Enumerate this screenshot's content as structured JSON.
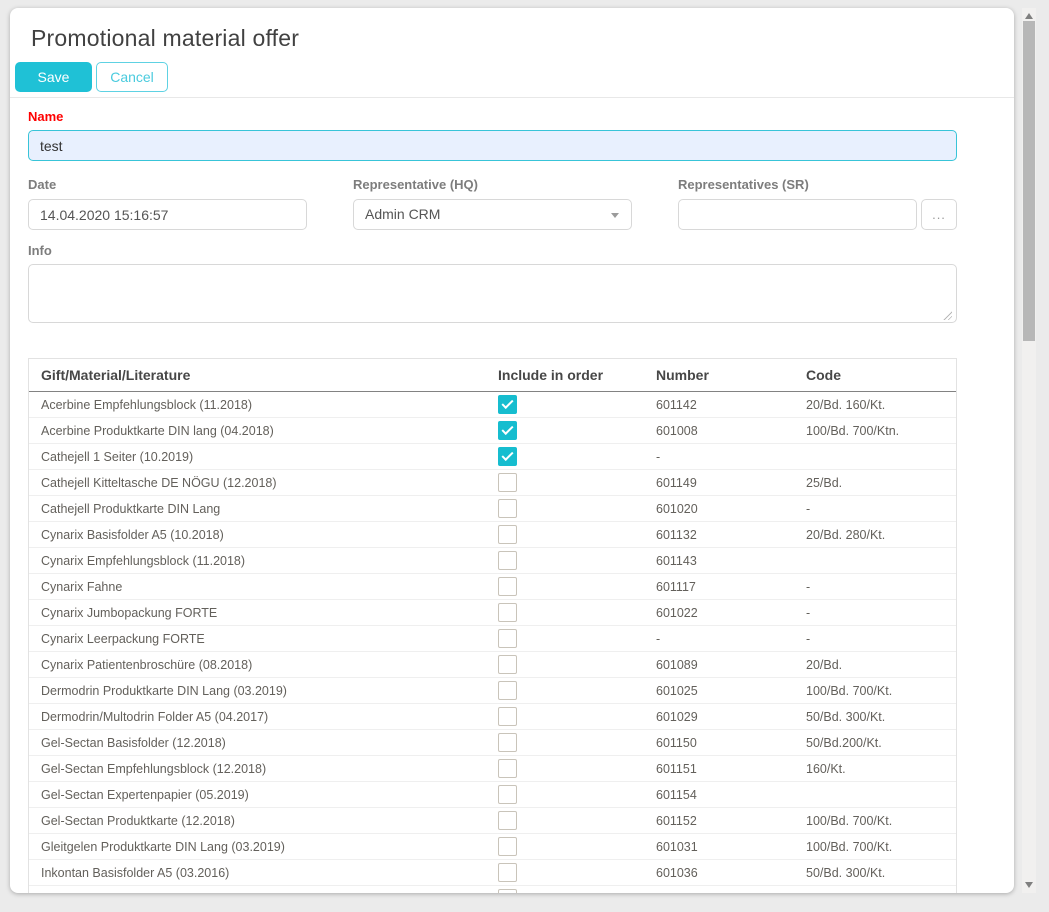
{
  "page": {
    "title": "Promotional material offer"
  },
  "toolbar": {
    "save_label": "Save",
    "cancel_label": "Cancel"
  },
  "form": {
    "name": {
      "label": "Name",
      "value": "test"
    },
    "date": {
      "label": "Date",
      "value": "14.04.2020 15:16:57"
    },
    "representative_hq": {
      "label": "Representative (HQ)",
      "selected": "Admin CRM"
    },
    "representatives_sr": {
      "label": "Representatives (SR)",
      "value": "",
      "browse_label": "..."
    },
    "info": {
      "label": "Info",
      "value": ""
    }
  },
  "table": {
    "columns": [
      "Gift/Material/Literature",
      "Include in order",
      "Number",
      "Code"
    ],
    "rows": [
      {
        "gift": "Acerbine Empfehlungsblock (11.2018)",
        "checked": true,
        "number": "601142",
        "code": "20/Bd. 160/Kt."
      },
      {
        "gift": "Acerbine Produktkarte DIN lang (04.2018)",
        "checked": true,
        "number": "601008",
        "code": "100/Bd. 700/Ktn."
      },
      {
        "gift": "Cathejell 1 Seiter (10.2019)",
        "checked": true,
        "number": "-",
        "code": ""
      },
      {
        "gift": "Cathejell Kitteltasche DE NÖGU (12.2018)",
        "checked": false,
        "number": "601149",
        "code": "25/Bd."
      },
      {
        "gift": "Cathejell Produktkarte DIN Lang",
        "checked": false,
        "number": "601020",
        "code": "-"
      },
      {
        "gift": "Cynarix Basisfolder A5 (10.2018)",
        "checked": false,
        "number": "601132",
        "code": "20/Bd. 280/Kt."
      },
      {
        "gift": "Cynarix Empfehlungsblock (11.2018)",
        "checked": false,
        "number": "601143",
        "code": ""
      },
      {
        "gift": "Cynarix Fahne",
        "checked": false,
        "number": "601117",
        "code": "-"
      },
      {
        "gift": "Cynarix Jumbopackung FORTE",
        "checked": false,
        "number": "601022",
        "code": "-"
      },
      {
        "gift": "Cynarix Leerpackung FORTE",
        "checked": false,
        "number": "-",
        "code": "-"
      },
      {
        "gift": "Cynarix Patientenbroschüre (08.2018)",
        "checked": false,
        "number": "601089",
        "code": "20/Bd."
      },
      {
        "gift": "Dermodrin Produktkarte DIN Lang (03.2019)",
        "checked": false,
        "number": "601025",
        "code": "100/Bd. 700/Kt."
      },
      {
        "gift": "Dermodrin/Multodrin Folder A5 (04.2017)",
        "checked": false,
        "number": "601029",
        "code": "50/Bd. 300/Kt."
      },
      {
        "gift": "Gel-Sectan Basisfolder (12.2018)",
        "checked": false,
        "number": "601150",
        "code": "50/Bd.200/Kt."
      },
      {
        "gift": "Gel-Sectan Empfehlungsblock (12.2018)",
        "checked": false,
        "number": "601151",
        "code": "160/Kt."
      },
      {
        "gift": "Gel-Sectan Expertenpapier (05.2019)",
        "checked": false,
        "number": "601154",
        "code": ""
      },
      {
        "gift": "Gel-Sectan Produktkarte (12.2018)",
        "checked": false,
        "number": "601152",
        "code": "100/Bd. 700/Kt."
      },
      {
        "gift": "Gleitgelen Produktkarte DIN Lang (03.2019)",
        "checked": false,
        "number": "601031",
        "code": "100/Bd. 700/Kt."
      },
      {
        "gift": "Inkontan Basisfolder A5 (03.2016)",
        "checked": false,
        "number": "601036",
        "code": "50/Bd. 300/Kt."
      },
      {
        "gift": "",
        "checked": false,
        "number": "",
        "code": ""
      }
    ]
  },
  "icons": {
    "dropdown_arrow": "triangle-down",
    "scrollbar_up": "triangle-up",
    "scrollbar_down": "triangle-down",
    "checkmark": "check",
    "textarea_resize": "resize-grip"
  },
  "colors": {
    "accent": "#1fc1d6",
    "checkbox_checked": "#16bdcf",
    "required_label": "#ff0000",
    "name_field_bg": "#e8f0fe"
  }
}
